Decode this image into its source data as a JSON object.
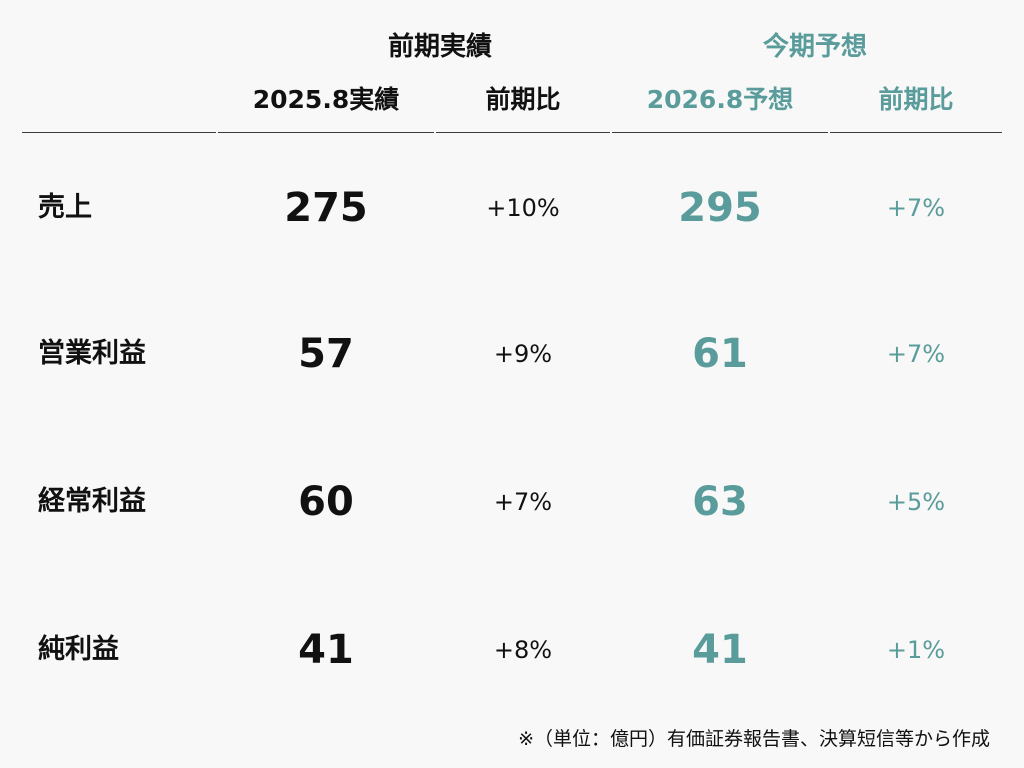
{
  "header": {
    "prev_group": "前期実績",
    "curr_group": "今期予想",
    "col_prev_actual": "2025.8実績",
    "col_prev_yoy": "前期比",
    "col_curr_forecast": "2026.8予想",
    "col_curr_yoy": "前期比"
  },
  "rows": [
    {
      "label": "売上",
      "actual": "275",
      "actual_yoy": "+10%",
      "forecast": "295",
      "forecast_yoy": "+7%"
    },
    {
      "label": "営業利益",
      "actual": "57",
      "actual_yoy": "+9%",
      "forecast": "61",
      "forecast_yoy": "+7%"
    },
    {
      "label": "経常利益",
      "actual": "60",
      "actual_yoy": "+7%",
      "forecast": "63",
      "forecast_yoy": "+5%"
    },
    {
      "label": "純利益",
      "actual": "41",
      "actual_yoy": "+8%",
      "forecast": "41",
      "forecast_yoy": "+1%"
    }
  ],
  "footnote": "※（単位：億円）有価証券報告書、決算短信等から作成",
  "colors": {
    "forecast": "#5a9b9b",
    "text": "#111111",
    "background": "#f7f8f7"
  }
}
